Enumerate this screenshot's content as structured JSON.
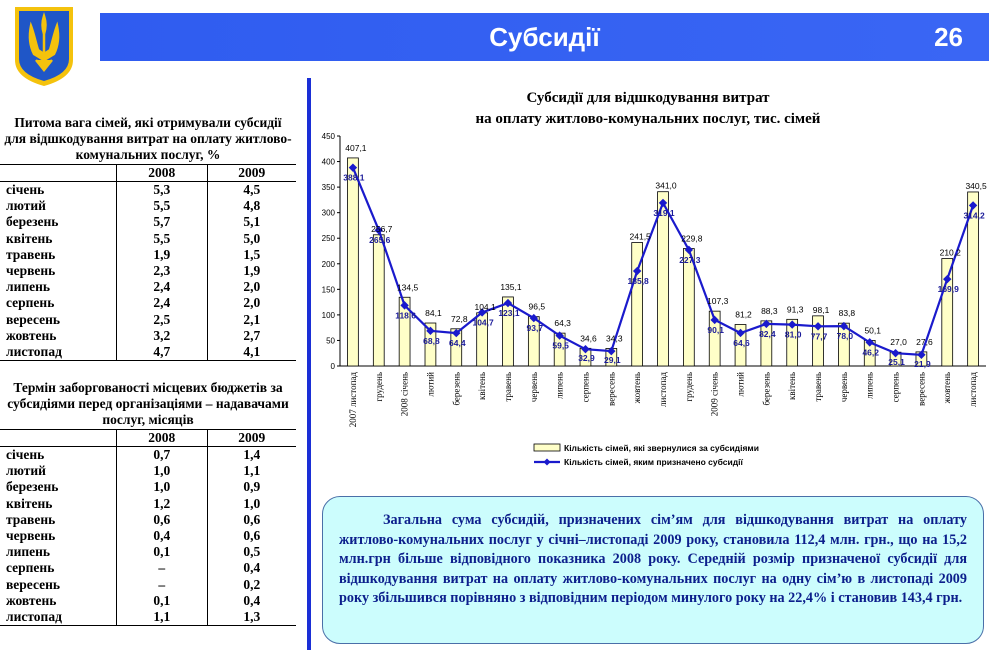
{
  "header": {
    "title": "Субсидії",
    "page_number": "26"
  },
  "table1": {
    "title": "Питома вага сімей, які отримували субсидії для відшкодування витрат на оплату житлово-комунальних послуг, %",
    "columns": [
      "2008",
      "2009"
    ],
    "rows": [
      {
        "month": "січень",
        "v2008": "5,3",
        "v2009": "4,5"
      },
      {
        "month": "лютий",
        "v2008": "5,5",
        "v2009": "4,8"
      },
      {
        "month": "березень",
        "v2008": "5,7",
        "v2009": "5,1"
      },
      {
        "month": "квітень",
        "v2008": "5,5",
        "v2009": "5,0"
      },
      {
        "month": "травень",
        "v2008": "1,9",
        "v2009": "1,5"
      },
      {
        "month": "червень",
        "v2008": "2,3",
        "v2009": "1,9"
      },
      {
        "month": "липень",
        "v2008": "2,4",
        "v2009": "2,0"
      },
      {
        "month": "серпень",
        "v2008": "2,4",
        "v2009": "2,0"
      },
      {
        "month": "вересень",
        "v2008": "2,5",
        "v2009": "2,1"
      },
      {
        "month": "жовтень",
        "v2008": "3,2",
        "v2009": "2,7"
      },
      {
        "month": "листопад",
        "v2008": "4,7",
        "v2009": "4,1"
      }
    ]
  },
  "table2": {
    "title": "Термін заборгованості місцевих бюджетів за субсидіями перед організаціями – надавачами послуг, місяців",
    "columns": [
      "2008",
      "2009"
    ],
    "rows": [
      {
        "month": "січень",
        "v2008": "0,7",
        "v2009": "1,4"
      },
      {
        "month": "лютий",
        "v2008": "1,0",
        "v2009": "1,1"
      },
      {
        "month": "березень",
        "v2008": "1,0",
        "v2009": "0,9"
      },
      {
        "month": "квітень",
        "v2008": "1,2",
        "v2009": "1,0"
      },
      {
        "month": "травень",
        "v2008": "0,6",
        "v2009": "0,6"
      },
      {
        "month": "червень",
        "v2008": "0,4",
        "v2009": "0,6"
      },
      {
        "month": "липень",
        "v2008": "0,1",
        "v2009": "0,5"
      },
      {
        "month": "серпень",
        "v2008": "–",
        "v2009": "0,4"
      },
      {
        "month": "вересень",
        "v2008": "–",
        "v2009": "0,2"
      },
      {
        "month": "жовтень",
        "v2008": "0,1",
        "v2009": "0,4"
      },
      {
        "month": "листопад",
        "v2008": "1,1",
        "v2009": "1,3"
      }
    ]
  },
  "chart_data": {
    "type": "bar",
    "title_line1": "Субсидії для відшкодування витрат",
    "title_line2": "на оплату житлово-комунальних послуг, тис. сімей",
    "ylim": [
      0,
      450
    ],
    "yticks": [
      0,
      50,
      100,
      150,
      200,
      250,
      300,
      350,
      400,
      450
    ],
    "categories": [
      "2007 листопад",
      "грудень",
      "2008 січень",
      "лютий",
      "березень",
      "квітень",
      "травень",
      "червень",
      "липень",
      "серпень",
      "вересень",
      "жовтень",
      "листопад",
      "грудень",
      "2009 січень",
      "лютий",
      "березень",
      "квітень",
      "травень",
      "червень",
      "липень",
      "серпень",
      "вересень",
      "жовтень",
      "листопад"
    ],
    "series": [
      {
        "name": "Кількість сімей, які звернулися за субсидіями",
        "kind": "bar",
        "values": [
          407.1,
          256.7,
          134.5,
          84.1,
          72.8,
          104.1,
          135.1,
          96.5,
          64.3,
          34.6,
          34.3,
          241.5,
          341.0,
          229.8,
          107.3,
          81.2,
          88.3,
          91.3,
          98.1,
          83.8,
          50.1,
          27.0,
          27.6,
          210.2,
          340.5
        ],
        "labels": [
          "407,1",
          "256,7",
          "134,5",
          "84,1",
          "72,8",
          "104,1",
          "135,1",
          "96,5",
          "64,3",
          "34,6",
          "34,3",
          "241,5",
          "341,0",
          "229,8",
          "107,3",
          "81,2",
          "88,3",
          "91,3",
          "98,1",
          "83,8",
          "50,1",
          "27,0",
          "27,6",
          "210,2",
          "340,5"
        ]
      },
      {
        "name": "Кількість сімей, яким призначено субсидії",
        "kind": "line",
        "values": [
          388.1,
          265.6,
          118.6,
          68.8,
          64.4,
          104.7,
          123.1,
          93.7,
          59.5,
          32.9,
          29.1,
          185.8,
          319.1,
          227.3,
          90.1,
          64.6,
          82.4,
          81.0,
          77.7,
          78.0,
          46.2,
          25.1,
          21.9,
          169.9,
          314.2
        ],
        "labels": [
          "388,1",
          "265,6",
          "118,6",
          "68,8",
          "64,4",
          "104,7",
          "123,1",
          "93,7",
          "59,5",
          "32,9",
          "29,1",
          "185,8",
          "319,1",
          "227,3",
          "90,1",
          "64,6",
          "82,4",
          "81,0",
          "77,7",
          "78,0",
          "46,2",
          "25,1",
          "21,9",
          "169,9",
          "314,2"
        ]
      }
    ],
    "legend_position": "bottom",
    "colors": {
      "bar_fill": "#ffffc8",
      "bar_stroke": "#000000",
      "line": "#1a1acc"
    }
  },
  "infobox": {
    "text": "Загальна сума субсидій, призначених сім’ям для відшкодування витрат на оплату житлово-комунальних послуг у січні–листопаді 2009 року, становила 112,4 млн. грн., що на 15,2 млн.грн більше відповідного показника 2008 року. Середній розмір призначеної субсидії для відшкодування витрат на оплату житлово-комунальних послуг на одну сім’ю в листопаді 2009 року збільшився  порівняно з відповідним періодом минулого року на 22,4% і становив 143,4 грн."
  },
  "colors": {
    "banner": "#3060f0",
    "accent_line": "#1a2fd6",
    "infobox_bg": "#ccfdfd",
    "infobox_text": "#0c1f8c",
    "emblem_blue": "#1f56c7",
    "emblem_gold": "#f4c20d"
  }
}
